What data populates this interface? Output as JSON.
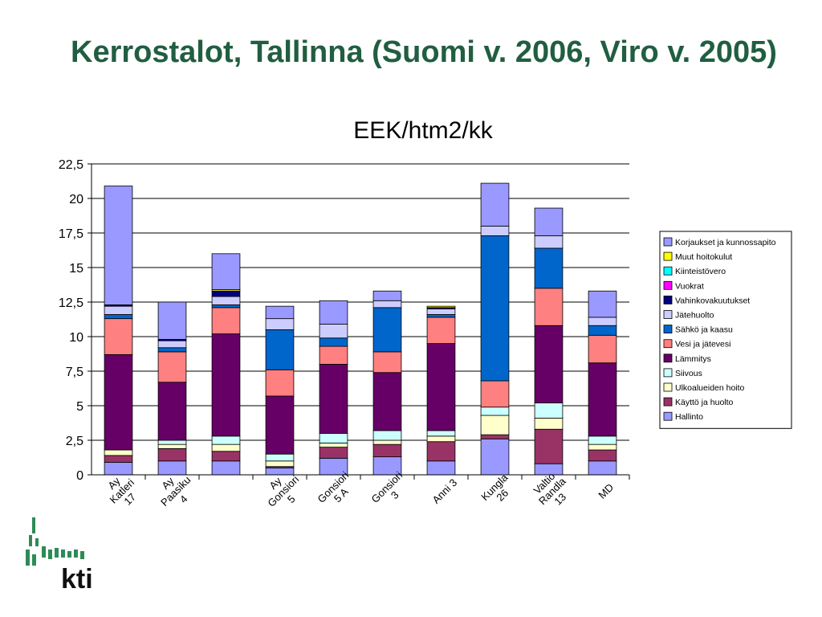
{
  "slide": {
    "title": "Kerrostalot, Tallinna (Suomi v. 2006, Viro v. 2005)",
    "logo_text": "kti"
  },
  "chart_data": {
    "type": "bar",
    "stacked": true,
    "title": "EEK/htm2/kk",
    "xlabel": "",
    "ylabel": "",
    "ylim": [
      0,
      22.5
    ],
    "yticks": [
      0,
      2.5,
      5,
      7.5,
      10,
      12.5,
      15,
      17.5,
      20,
      22.5
    ],
    "ytick_labels": [
      "0",
      "2,5",
      "5",
      "7,5",
      "10",
      "12,5",
      "15",
      "17,5",
      "20",
      "22,5"
    ],
    "grid": "horizontal",
    "legend_position": "right",
    "categories": [
      [
        "Ay",
        "Katleri",
        "17"
      ],
      [
        "Ay",
        "Paasiku",
        "4"
      ],
      [
        ""
      ],
      [
        "Ay",
        "Gonsiori",
        "5"
      ],
      [
        "Gonsiori",
        "5 A"
      ],
      [
        "Gonsiori",
        "3"
      ],
      [
        "Anni 3"
      ],
      [
        "Kungla",
        "26"
      ],
      [
        "Valtio",
        "Randla",
        "13"
      ],
      [
        "MD"
      ]
    ],
    "series": [
      {
        "name": "Hallinto",
        "color": "#9999ff",
        "values": [
          0.9,
          1.0,
          1.0,
          0.5,
          1.2,
          1.3,
          1.0,
          2.6,
          0.8,
          1.0
        ]
      },
      {
        "name": "Käyttö ja huolto",
        "color": "#993366",
        "values": [
          0.5,
          0.9,
          0.7,
          0.1,
          0.8,
          0.9,
          1.4,
          0.3,
          2.5,
          0.8
        ]
      },
      {
        "name": "Ulkoalueiden hoito",
        "color": "#ffffcc",
        "values": [
          0.4,
          0.3,
          0.5,
          0.4,
          0.3,
          0.3,
          0.4,
          1.4,
          0.8,
          0.4
        ]
      },
      {
        "name": "Siivous",
        "color": "#ccffff",
        "values": [
          0.0,
          0.3,
          0.6,
          0.5,
          0.7,
          0.7,
          0.4,
          0.6,
          1.1,
          0.6
        ]
      },
      {
        "name": "Lämmitys",
        "color": "#660066",
        "values": [
          6.9,
          4.2,
          7.4,
          4.2,
          5.0,
          4.2,
          6.3,
          0.0,
          5.6,
          5.3
        ]
      },
      {
        "name": "Vesi ja jätevesi",
        "color": "#ff8080",
        "values": [
          2.6,
          2.2,
          1.9,
          1.9,
          1.3,
          1.5,
          1.9,
          1.9,
          2.7,
          2.0
        ]
      },
      {
        "name": "Sähkö ja kaasu",
        "color": "#0066cc",
        "values": [
          0.3,
          0.3,
          0.2,
          2.9,
          0.6,
          3.2,
          0.2,
          10.5,
          2.9,
          0.7
        ]
      },
      {
        "name": "Jätehuolto",
        "color": "#ccccff",
        "values": [
          0.6,
          0.5,
          0.6,
          0.8,
          1.0,
          0.5,
          0.4,
          0.7,
          0.9,
          0.6
        ]
      },
      {
        "name": "Vahinkovakuutukset",
        "color": "#000080",
        "values": [
          0.1,
          0.1,
          0.4,
          0.0,
          0.0,
          0.0,
          0.1,
          0.0,
          0.0,
          0.0
        ]
      },
      {
        "name": "Vuokrat",
        "color": "#ff00ff",
        "values": [
          0,
          0,
          0,
          0,
          0,
          0,
          0,
          0,
          0,
          0
        ]
      },
      {
        "name": "Kiinteistövero",
        "color": "#00ffff",
        "values": [
          0,
          0,
          0.0,
          0,
          0,
          0,
          0,
          0,
          0,
          0
        ]
      },
      {
        "name": "Muut hoitokulut",
        "color": "#ffff00",
        "values": [
          0.0,
          0.0,
          0.1,
          0.0,
          0.0,
          0.0,
          0.1,
          0.0,
          0.0,
          0.0
        ]
      },
      {
        "name": "Korjaukset ja kunnossapito",
        "color": "#9999ff",
        "values": [
          8.6,
          2.7,
          2.6,
          0.9,
          1.7,
          0.7,
          0.0,
          3.1,
          2.0,
          1.9
        ]
      }
    ],
    "legend_order": [
      "Korjaukset ja kunnossapito",
      "Muut hoitokulut",
      "Kiinteistövero",
      "Vuokrat",
      "Vahinkovakuutukset",
      "Jätehuolto",
      "Sähkö ja kaasu",
      "Vesi ja jätevesi",
      "Lämmitys",
      "Siivous",
      "Ulkoalueiden hoito",
      "Käyttö ja huolto",
      "Hallinto"
    ]
  }
}
